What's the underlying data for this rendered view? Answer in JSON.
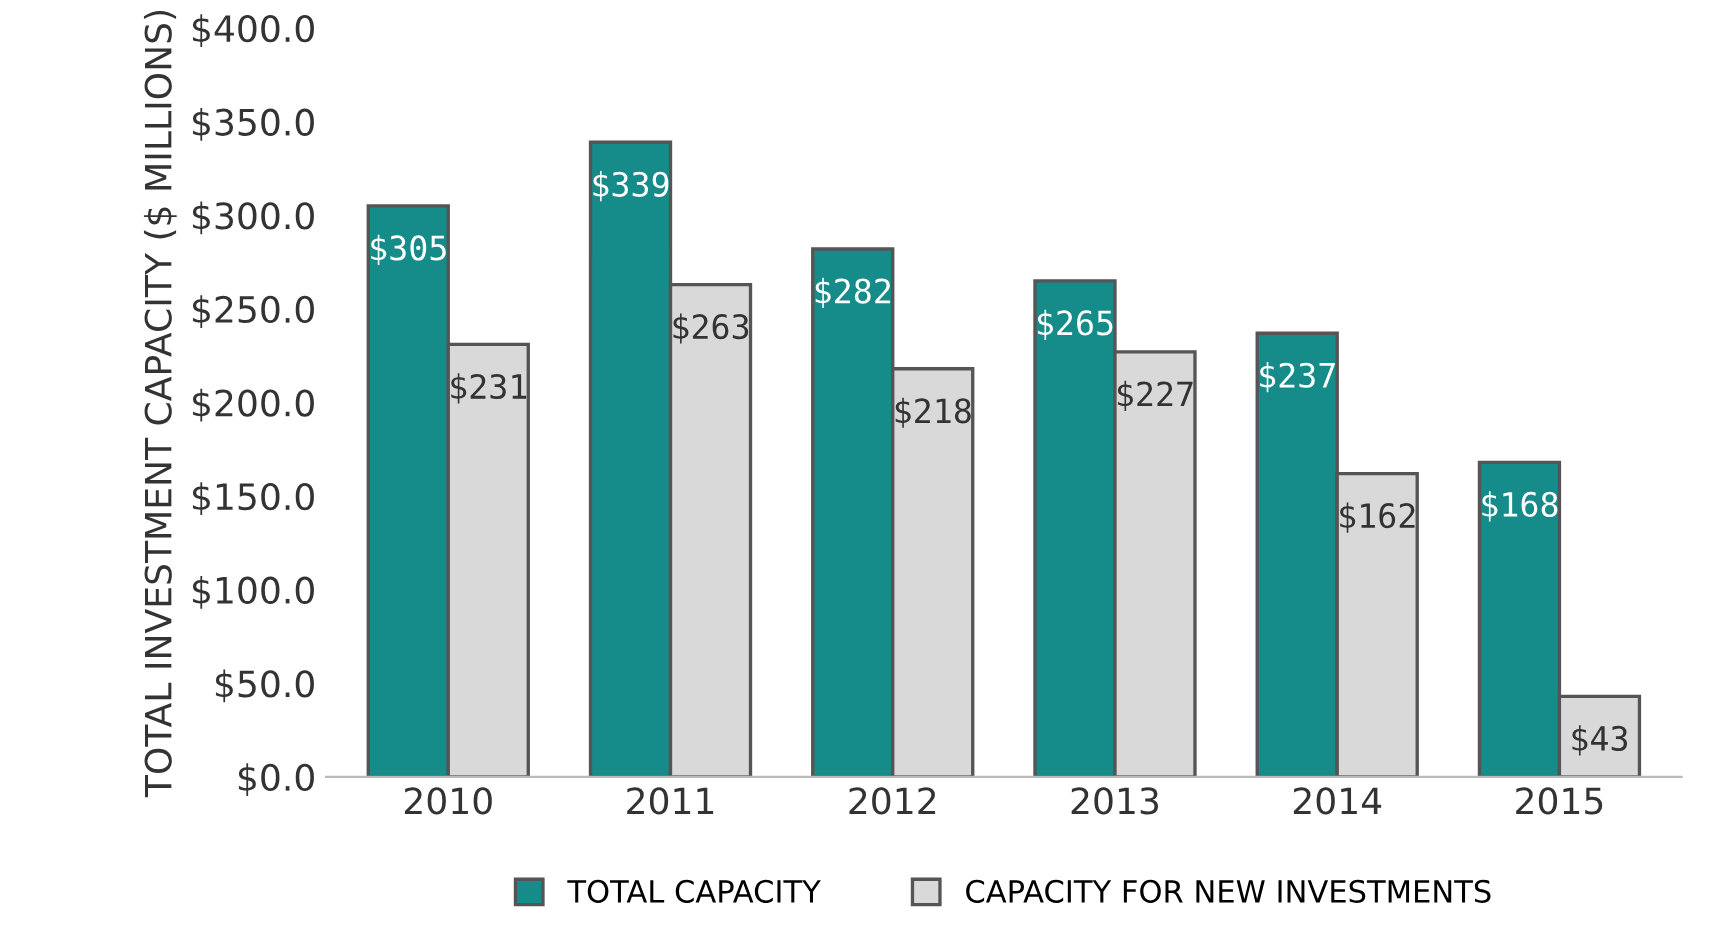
{
  "chart_data": {
    "type": "bar",
    "ylabel": "TOTAL INVESTMENT CAPACITY ($ MILLIONS)",
    "categories": [
      "2010",
      "2011",
      "2012",
      "2013",
      "2014",
      "2015"
    ],
    "series": [
      {
        "name": "TOTAL CAPACITY",
        "color": "#168c8a",
        "values": [
          305,
          339,
          282,
          265,
          237,
          168
        ],
        "value_labels": [
          "$305",
          "$339",
          "$282",
          "$265",
          "$237",
          "$168"
        ]
      },
      {
        "name": "CAPACITY FOR NEW INVESTMENTS",
        "color": "#d9d9d9",
        "values": [
          231,
          263,
          218,
          227,
          162,
          43
        ],
        "value_labels": [
          "$231",
          "$263",
          "$218",
          "$227",
          "$162",
          "$43"
        ]
      }
    ],
    "ylim": [
      0,
      400
    ],
    "yticks": [
      {
        "value": 0,
        "label": "$0.0"
      },
      {
        "value": 50,
        "label": "$50.0"
      },
      {
        "value": 100,
        "label": "$100.0"
      },
      {
        "value": 150,
        "label": "$150.0"
      },
      {
        "value": 200,
        "label": "$200.0"
      },
      {
        "value": 250,
        "label": "$250.0"
      },
      {
        "value": 300,
        "label": "$300.0"
      },
      {
        "value": 350,
        "label": "$350.0"
      },
      {
        "value": 400,
        "label": "$400.0"
      }
    ],
    "grid": false,
    "legend": "bottom"
  }
}
